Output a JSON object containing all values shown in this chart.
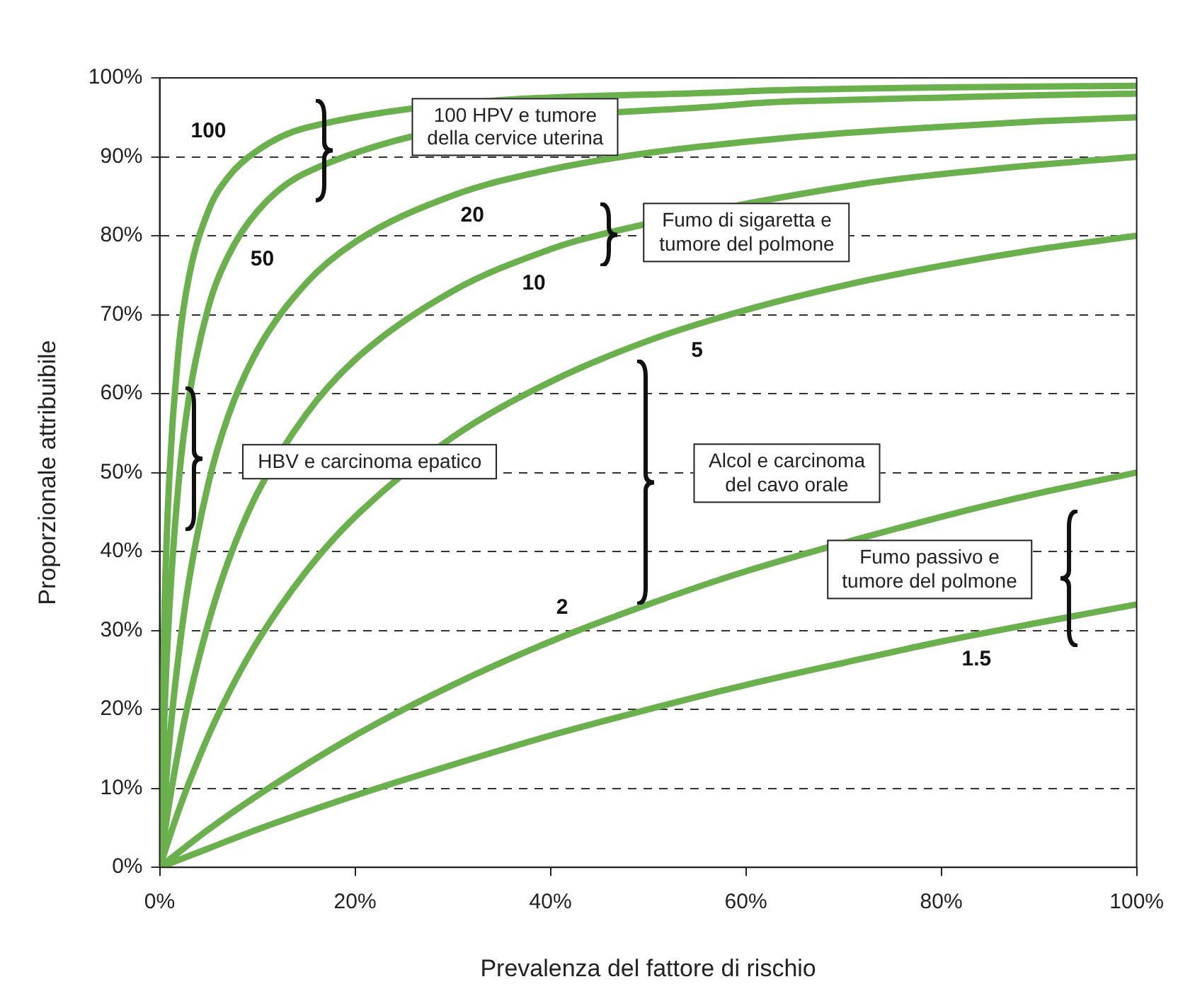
{
  "chart_data": {
    "type": "line",
    "xlabel": "Prevalenza del fattore di rischio",
    "ylabel": "Proporzionale attribuibile",
    "xlim": [
      0,
      100
    ],
    "ylim": [
      0,
      100
    ],
    "xticks": [
      {
        "value": 0,
        "label": "0%"
      },
      {
        "value": 20,
        "label": "20%"
      },
      {
        "value": 40,
        "label": "40%"
      },
      {
        "value": 60,
        "label": "60%"
      },
      {
        "value": 80,
        "label": "80%"
      },
      {
        "value": 100,
        "label": "100%"
      }
    ],
    "yticks": [
      {
        "value": 0,
        "label": "0%"
      },
      {
        "value": 10,
        "label": "10%"
      },
      {
        "value": 20,
        "label": "20%"
      },
      {
        "value": 30,
        "label": "30%"
      },
      {
        "value": 40,
        "label": "40%"
      },
      {
        "value": 50,
        "label": "50%"
      },
      {
        "value": 60,
        "label": "60%"
      },
      {
        "value": 70,
        "label": "70%"
      },
      {
        "value": 80,
        "label": "80%"
      },
      {
        "value": 90,
        "label": "90%"
      },
      {
        "value": 100,
        "label": "100%"
      }
    ],
    "grid": "y",
    "legend": false,
    "marker": "none",
    "line_style": "solid",
    "series": [
      {
        "name": "1.5",
        "color": "#6ab04c",
        "x": [
          0,
          5,
          10,
          20,
          30,
          40,
          50,
          60,
          70,
          80,
          90,
          100
        ],
        "values": [
          0,
          2.4,
          4.8,
          9.1,
          13.0,
          16.7,
          20,
          23.1,
          25.9,
          28.6,
          31.0,
          33.3
        ]
      },
      {
        "name": "2",
        "color": "#6ab04c",
        "x": [
          0,
          5,
          10,
          20,
          30,
          40,
          50,
          60,
          80,
          90,
          100
        ],
        "values": [
          0,
          4.8,
          9.1,
          16.7,
          23.1,
          28.6,
          33.3,
          37.5,
          44.4,
          47.4,
          50
        ]
      },
      {
        "name": "5",
        "color": "#6ab04c",
        "x": [
          0,
          1,
          2,
          3,
          5,
          7,
          10,
          15,
          20,
          30,
          40,
          50,
          60,
          70,
          80,
          90,
          100
        ],
        "values": [
          0,
          3.8,
          7.4,
          10.7,
          16.7,
          21.9,
          28.6,
          37.5,
          44.4,
          54.5,
          61.5,
          66.7,
          70.6,
          73.7,
          76.2,
          78.3,
          80
        ]
      },
      {
        "name": "10",
        "color": "#6ab04c",
        "x": [
          0,
          1,
          2,
          3,
          5,
          7,
          10,
          15,
          20,
          30,
          40,
          44,
          72,
          80,
          90,
          100
        ],
        "values": [
          0,
          8.3,
          15.3,
          21.3,
          31.0,
          38.7,
          47.4,
          57.4,
          64.3,
          73.0,
          78.3,
          79.8,
          86.6,
          87.8,
          89.0,
          90
        ]
      },
      {
        "name": "20",
        "color": "#6ab04c",
        "x": [
          0,
          1,
          2,
          3,
          5,
          7,
          10,
          15,
          20,
          30,
          40,
          50,
          60,
          70,
          80,
          90,
          100
        ],
        "values": [
          0,
          16.0,
          27.5,
          36.3,
          48.7,
          57.1,
          65.5,
          74.0,
          79.2,
          85.1,
          88.4,
          90.5,
          91.9,
          93.0,
          93.8,
          94.5,
          95
        ]
      },
      {
        "name": "50",
        "color": "#6ab04c",
        "x": [
          0,
          0.5,
          1,
          2,
          3,
          5,
          7,
          10,
          15,
          60,
          70,
          80,
          90,
          100
        ],
        "values": [
          0,
          19.7,
          32.9,
          49.5,
          59.5,
          71.0,
          77.4,
          83.1,
          88.0,
          96.7,
          97.2,
          97.5,
          97.8,
          98
        ]
      },
      {
        "name": "100",
        "color": "#6ab04c",
        "x": [
          0,
          0.5,
          1,
          2,
          3,
          5,
          7,
          10,
          15,
          60,
          70,
          80,
          90,
          100
        ],
        "values": [
          0,
          33.1,
          49.7,
          66.4,
          74.8,
          83.2,
          87.4,
          90.8,
          93.7,
          98.3,
          98.6,
          98.8,
          98.9,
          99
        ]
      }
    ],
    "annotations": [
      "100 HPV e tumore\ndella cervice uterina",
      "Fumo di sigaretta e\ntumore del polmone",
      "HBV e carcinoma epatico",
      "Alcol e carcinoma\ndel cavo orale",
      "Fumo passivo e\ntumore del polmone"
    ]
  }
}
